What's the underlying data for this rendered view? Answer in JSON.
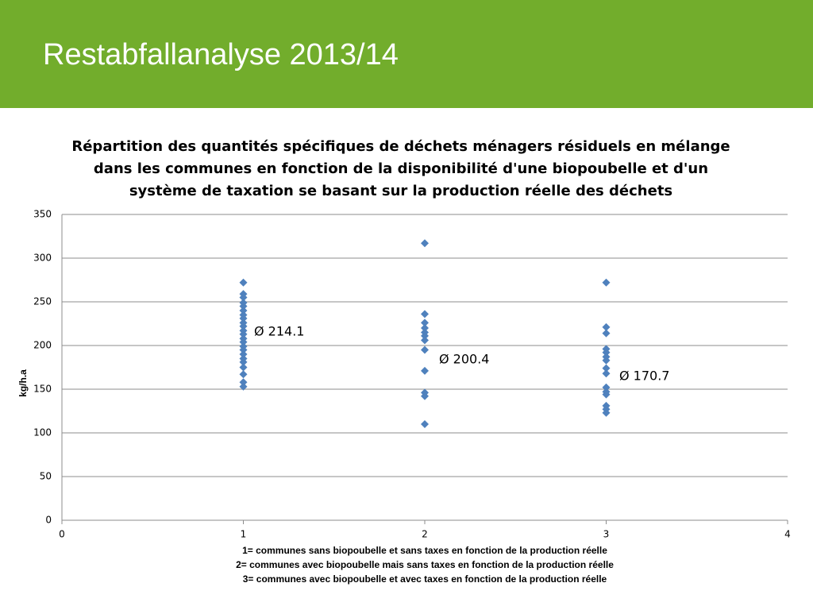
{
  "slide_title": "Restabfallanalyse 2013/14",
  "chart_data": {
    "type": "scatter",
    "title_lines": [
      "Répartition des quantités spécifiques de déchets ménagers résiduels en mélange",
      "dans les communes en fonction de la disponibilité d'une biopoubelle et d'un",
      "système de taxation se basant sur la production réelle des déchets"
    ],
    "ylabel": "kg/h.a",
    "xlabel_lines": [
      "1= communes sans biopoubelle et sans taxes en fonction de la production réelle",
      "2= communes avec biopoubelle mais sans taxes en fonction de la production réelle",
      "3= communes avec biopoubelle et avec taxes en fonction de la production réelle"
    ],
    "annotations": [
      "Ø 214.1",
      "Ø 200.4",
      "Ø 170.7"
    ],
    "xlim": [
      0,
      4
    ],
    "xticks": [
      0,
      1,
      2,
      3,
      4
    ],
    "ylim": [
      0,
      350
    ],
    "yticks": [
      0,
      50,
      100,
      150,
      200,
      250,
      300,
      350
    ],
    "grid": true,
    "color": "#4f81bd",
    "x": [
      1,
      1,
      1,
      1,
      1,
      1,
      1,
      1,
      1,
      1,
      1,
      1,
      1,
      1,
      1,
      1,
      1,
      1,
      1,
      1,
      1,
      1,
      1,
      2,
      2,
      2,
      2,
      2,
      2,
      2,
      2,
      2,
      2,
      2,
      2,
      3,
      3,
      3,
      3,
      3,
      3,
      3,
      3,
      3,
      3,
      3,
      3,
      3,
      3,
      3
    ],
    "values": [
      272,
      259,
      255,
      249,
      245,
      240,
      235,
      231,
      226,
      222,
      217,
      213,
      208,
      204,
      199,
      195,
      190,
      185,
      181,
      175,
      167,
      158,
      153,
      317,
      236,
      226,
      220,
      215,
      211,
      206,
      195,
      171,
      146,
      142,
      110,
      272,
      221,
      214,
      196,
      192,
      187,
      183,
      174,
      168,
      152,
      147,
      144,
      131,
      127,
      123
    ]
  }
}
